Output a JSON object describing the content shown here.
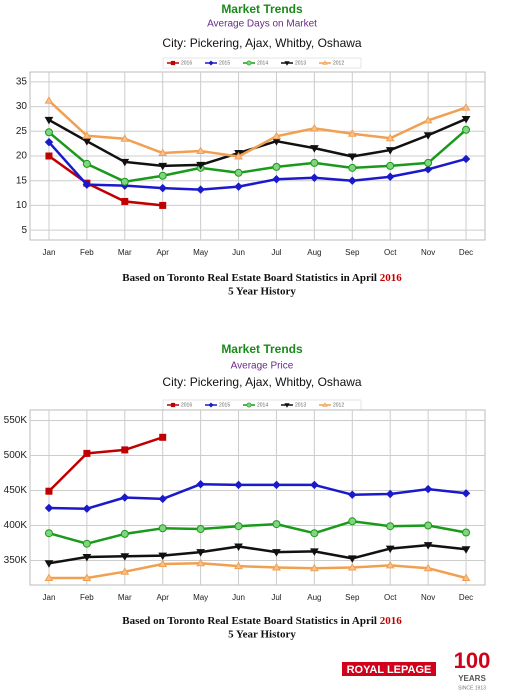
{
  "chart_data": [
    {
      "type": "line",
      "title": "Market Trends",
      "subtitle": "Average Days on Market",
      "heading": "City: Pickering, Ajax, Whitby, Oshawa",
      "categories": [
        "Jan",
        "Feb",
        "Mar",
        "Apr",
        "May",
        "Jun",
        "Jul",
        "Aug",
        "Sep",
        "Oct",
        "Nov",
        "Dec"
      ],
      "ylim": [
        3,
        37
      ],
      "yticks": [
        5,
        10,
        15,
        20,
        25,
        30,
        35
      ],
      "grid": true,
      "legend": "top",
      "series": [
        {
          "name": "2016",
          "color": "#c00000",
          "marker": "square",
          "values": [
            20,
            14.5,
            10.8,
            10,
            null,
            null,
            null,
            null,
            null,
            null,
            null,
            null
          ]
        },
        {
          "name": "2015",
          "color": "#1a1acc",
          "marker": "diamond",
          "values": [
            22.8,
            14.2,
            14,
            13.5,
            13.2,
            13.8,
            15.3,
            15.6,
            15,
            15.8,
            17.3,
            19.4
          ]
        },
        {
          "name": "2014",
          "color": "#1a9a1a",
          "marker": "circle",
          "values": [
            24.8,
            18.4,
            14.8,
            16,
            17.6,
            16.6,
            17.8,
            18.6,
            17.6,
            18,
            18.6,
            25.3
          ]
        },
        {
          "name": "2013",
          "color": "#111111",
          "marker": "triangle-down",
          "values": [
            27.3,
            23,
            18.8,
            18,
            18.2,
            20.6,
            23,
            21.6,
            19.9,
            21.2,
            24.2,
            27.5
          ]
        },
        {
          "name": "2012",
          "color": "#f0a050",
          "marker": "triangle",
          "values": [
            31.2,
            24.1,
            23.5,
            20.6,
            21,
            19.9,
            24,
            25.6,
            24.5,
            23.6,
            27.2,
            29.8
          ]
        }
      ],
      "footnote": "Based on Toronto Real Estate Board Statistics in April",
      "footnote_year": "2016",
      "footnote2": "5  Year History"
    },
    {
      "type": "line",
      "title": "Market Trends",
      "subtitle": "Average Price",
      "heading": "City: Pickering, Ajax, Whitby, Oshawa",
      "categories": [
        "Jan",
        "Feb",
        "Mar",
        "Apr",
        "May",
        "Jun",
        "Jul",
        "Aug",
        "Sep",
        "Oct",
        "Nov",
        "Dec"
      ],
      "ylim": [
        315000,
        565000
      ],
      "yticks": [
        {
          "value": 350000,
          "label": "350K"
        },
        {
          "value": 400000,
          "label": "400K"
        },
        {
          "value": 450000,
          "label": "450K"
        },
        {
          "value": 500000,
          "label": "500K"
        },
        {
          "value": 550000,
          "label": "550K"
        }
      ],
      "grid": true,
      "legend": "top",
      "series": [
        {
          "name": "2016",
          "color": "#c00000",
          "marker": "square",
          "values": [
            449000,
            503000,
            508000,
            526000,
            null,
            null,
            null,
            null,
            null,
            null,
            null,
            null
          ]
        },
        {
          "name": "2015",
          "color": "#1a1acc",
          "marker": "diamond",
          "values": [
            425000,
            424000,
            440000,
            438000,
            459000,
            458000,
            458000,
            458000,
            444000,
            445000,
            452000,
            446000
          ]
        },
        {
          "name": "2014",
          "color": "#1a9a1a",
          "marker": "circle",
          "values": [
            389000,
            374000,
            388000,
            396000,
            395000,
            399000,
            402000,
            389000,
            406000,
            399000,
            400000,
            390000
          ]
        },
        {
          "name": "2013",
          "color": "#111111",
          "marker": "triangle-down",
          "values": [
            346000,
            355000,
            356000,
            357000,
            362000,
            370000,
            362000,
            363000,
            353000,
            367000,
            372000,
            366000
          ]
        },
        {
          "name": "2012",
          "color": "#f0a050",
          "marker": "triangle",
          "values": [
            325000,
            325000,
            334000,
            345000,
            346000,
            342000,
            340000,
            339000,
            340000,
            343000,
            339000,
            325000
          ]
        }
      ],
      "footnote": "Based on Toronto Real Estate Board Statistics in April",
      "footnote_year": "2016",
      "footnote2": "5 Year History"
    }
  ],
  "logo": {
    "brand": "ROYAL LEPAGE",
    "number": "100",
    "years": "YEARS",
    "since": "SINCE 1913"
  }
}
